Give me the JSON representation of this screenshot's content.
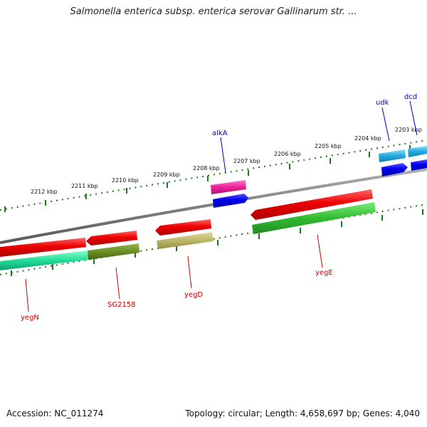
{
  "title": "Salmonella enterica subsp. enterica serovar Gallinarum str. ...",
  "footer": {
    "accession": "Accession: NC_011274",
    "summary": "Topology: circular; Length: 4,658,697 bp; Genes: 4,040"
  },
  "ruler": [
    {
      "label": "2212 kbp"
    },
    {
      "label": "2211 kbp"
    },
    {
      "label": "2210 kbp"
    },
    {
      "label": "2209 kbp"
    },
    {
      "label": "2208 kbp"
    },
    {
      "label": "2207 kbp"
    },
    {
      "label": "2206 kbp"
    },
    {
      "label": "2205 kbp"
    },
    {
      "label": "2204 kbp"
    },
    {
      "label": "2203 kbp"
    }
  ],
  "genes": [
    {
      "name": "alkA",
      "strand": "forward"
    },
    {
      "name": "udk",
      "strand": "forward"
    },
    {
      "name": "dcd",
      "strand": "forward"
    },
    {
      "name": "yegN",
      "strand": "reverse"
    },
    {
      "name": "SG2158",
      "strand": "reverse"
    },
    {
      "name": "yegD",
      "strand": "reverse"
    },
    {
      "name": "yegE",
      "strand": "reverse"
    }
  ],
  "colors": {
    "backbone": "#808080",
    "tick": "#1a7a1a",
    "label_forward": "#0000bb",
    "label_reverse": "#cc0000",
    "cds_forward": "#0000ee",
    "cds_reverse": "#ee0000",
    "alkA_feature": "#ee2299",
    "udk_dcd_feature": "#22aadd",
    "yegN_feature": "#22dd99",
    "SG2158_feature": "#6b8e23",
    "yegD_feature": "#bdb76b",
    "yegE_feature": "#33bb33"
  }
}
